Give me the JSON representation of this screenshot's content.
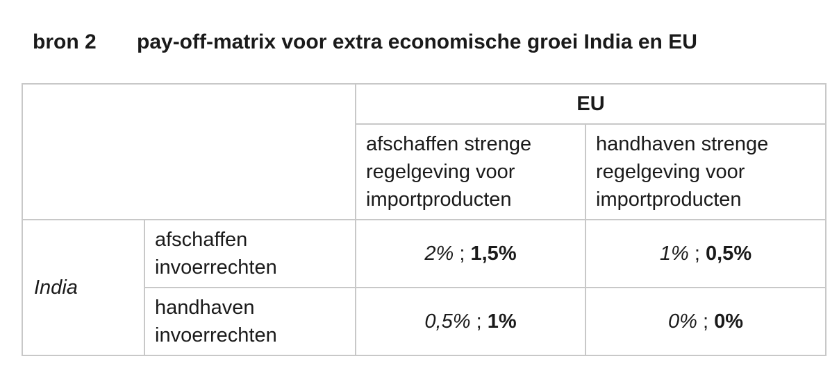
{
  "heading": {
    "label": "bron 2",
    "title": "pay-off-matrix voor extra economische groei India en EU"
  },
  "matrix": {
    "column_player": "EU",
    "row_player": "India",
    "column_strategies": [
      {
        "lines": [
          "afschaffen strenge",
          "regelgeving voor",
          "importproducten"
        ]
      },
      {
        "lines": [
          "handhaven strenge",
          "regelgeving voor",
          "importproducten"
        ]
      }
    ],
    "row_strategies": [
      {
        "lines": [
          "afschaffen",
          "invoerrechten"
        ]
      },
      {
        "lines": [
          "handhaven",
          "invoerrechten"
        ]
      }
    ],
    "separator": ";",
    "payoffs": [
      [
        {
          "india": "2%",
          "eu": "1,5%"
        },
        {
          "india": "1%",
          "eu": "0,5%"
        }
      ],
      [
        {
          "india": "0,5%",
          "eu": "1%"
        },
        {
          "india": "0%",
          "eu": "0%"
        }
      ]
    ]
  }
}
